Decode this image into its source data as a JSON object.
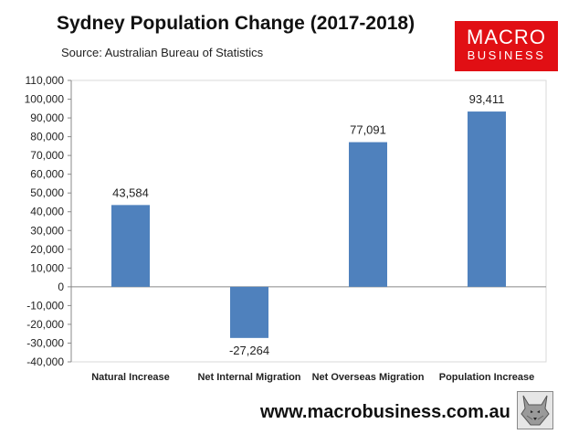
{
  "header": {
    "title": "Sydney Population Change (2017-2018)",
    "source": "Source: Australian Bureau of Statistics"
  },
  "logo": {
    "line1": "MACRO",
    "line2": "BUSINESS",
    "color": "#e10f14"
  },
  "footer": {
    "url": "www.macrobusiness.com.au",
    "mascot_icon": "wolf-icon"
  },
  "chart_data": {
    "type": "bar",
    "categories": [
      "Natural Increase",
      "Net Internal Migration",
      "Net Overseas Migration",
      "Population Increase"
    ],
    "values": [
      43584,
      -27264,
      77091,
      93411
    ],
    "data_labels": [
      "43,584",
      "-27,264",
      "77,091",
      "93,411"
    ],
    "ylim": [
      -40000,
      110000
    ],
    "yticks": [
      -40000,
      -30000,
      -20000,
      -10000,
      0,
      10000,
      20000,
      30000,
      40000,
      50000,
      60000,
      70000,
      80000,
      90000,
      100000,
      110000
    ],
    "ytick_labels": [
      "-40,000",
      "-30,000",
      "-20,000",
      "-10,000",
      "0",
      "10,000",
      "20,000",
      "30,000",
      "40,000",
      "50,000",
      "60,000",
      "70,000",
      "80,000",
      "90,000",
      "100,000",
      "110,000"
    ],
    "grid": false,
    "legend": "none",
    "bar_color": "#4f81bd"
  }
}
